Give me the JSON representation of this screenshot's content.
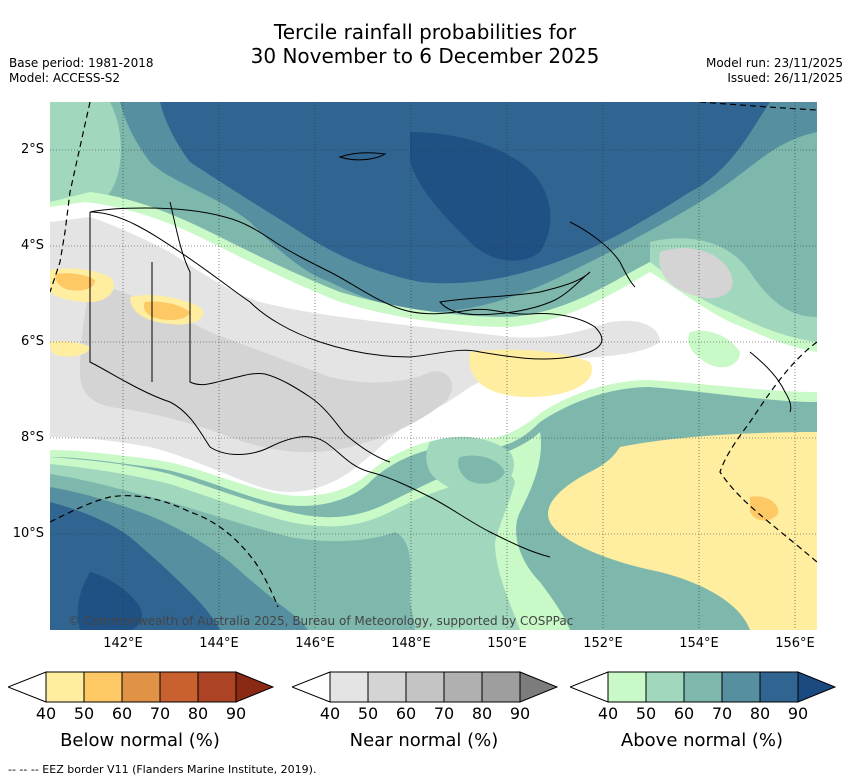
{
  "title_line1": "Tercile rainfall probabilities for",
  "title_line2": "30 November to 6 December 2025",
  "base_period": "Base period: 1981-2018",
  "model": "Model: ACCESS-S2",
  "model_run": "Model run: 23/11/2025",
  "issued": "Issued: 26/11/2025",
  "copyright": "© Commonwealth of Australia 2025, Bureau of Meteorology, supported by COSPPac",
  "lon_ticks": [
    "142°E",
    "144°E",
    "146°E",
    "148°E",
    "150°E",
    "152°E",
    "154°E",
    "156°E"
  ],
  "lat_ticks": [
    "2°S",
    "4°S",
    "6°S",
    "8°S",
    "10°S"
  ],
  "colorbars": {
    "below": {
      "label": "Below normal (%)",
      "ticks": [
        "40",
        "50",
        "60",
        "70",
        "80",
        "90"
      ],
      "colors": [
        "#ffffff",
        "#ffeda0",
        "#fec965",
        "#e09246",
        "#c8612f",
        "#ad4325",
        "#8a2a14"
      ]
    },
    "near": {
      "label": "Near normal (%)",
      "ticks": [
        "40",
        "50",
        "60",
        "70",
        "80",
        "90"
      ],
      "colors": [
        "#ffffff",
        "#e4e4e4",
        "#d4d4d4",
        "#c4c4c4",
        "#b0b0b0",
        "#9e9e9e",
        "#7c7c7c"
      ]
    },
    "above": {
      "label": "Above normal (%)",
      "ticks": [
        "40",
        "50",
        "60",
        "70",
        "80",
        "90"
      ],
      "colors": [
        "#ffffff",
        "#c9f9c7",
        "#a0d7bd",
        "#7eb8ad",
        "#5690a0",
        "#316591",
        "#1a4a80"
      ]
    }
  },
  "footnote": "-- -- -- EEZ border V11 (Flanders Marine Institute, 2019)."
}
